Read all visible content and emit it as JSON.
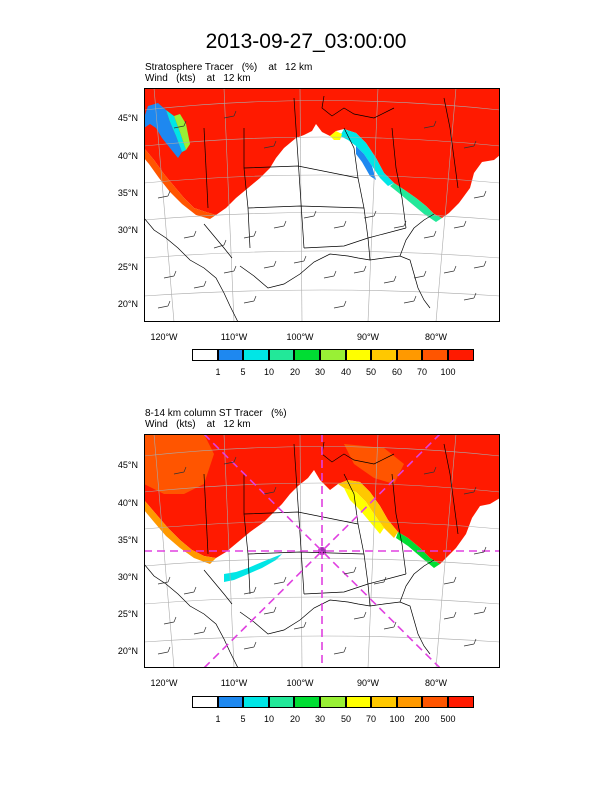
{
  "title": "2013-09-27_03:00:00",
  "colors": {
    "red": "#ff1a00",
    "red_dark": "#ee0000",
    "orange_red": "#ff5500",
    "orange": "#ff9900",
    "light_orange": "#ffc800",
    "yellow": "#ffff00",
    "light_green": "#99f035",
    "green": "#00dd33",
    "sea_green": "#22e899",
    "cyan": "#00e6e6",
    "blue": "#1e88f0",
    "magenta": "#e040e0",
    "purple": "#9933aa",
    "land_line": "#000000"
  },
  "panels": [
    {
      "title_line1": "Stratosphere Tracer   (%)    at   12 km",
      "title_line2": "Wind   (kts)    at   12 km",
      "lat_labels": [
        "45°N",
        "40°N",
        "35°N",
        "30°N",
        "25°N",
        "20°N"
      ],
      "lon_labels": [
        "120°W",
        "110°W",
        "100°W",
        "90°W",
        "80°W"
      ],
      "colorbar_labels": [
        "1",
        "5",
        "10",
        "20",
        "30",
        "40",
        "50",
        "60",
        "70",
        "100"
      ]
    },
    {
      "title_line1": "8-14 km column ST Tracer   (%)",
      "title_line2": "Wind   (kts)    at   12 km",
      "lat_labels": [
        "45°N",
        "40°N",
        "35°N",
        "30°N",
        "25°N",
        "20°N"
      ],
      "lon_labels": [
        "120°W",
        "110°W",
        "100°W",
        "90°W",
        "80°W"
      ],
      "colorbar_labels": [
        "1",
        "5",
        "10",
        "20",
        "30",
        "50",
        "70",
        "100",
        "200",
        "500"
      ]
    }
  ]
}
